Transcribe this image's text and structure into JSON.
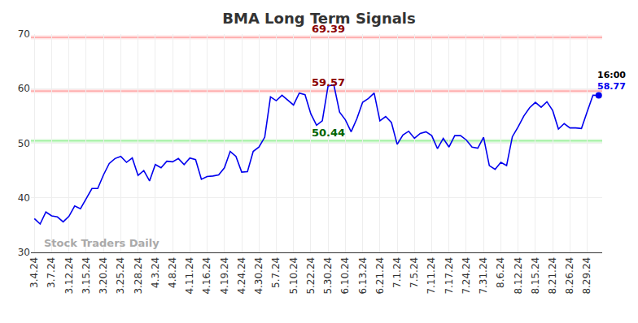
{
  "chart_data": {
    "type": "line",
    "title": "BMA Long Term Signals",
    "watermark": "Stock Traders Daily",
    "categories": [
      "3.4.24",
      null,
      null,
      "3.7.24",
      null,
      null,
      "3.12.24",
      null,
      null,
      "3.15.24",
      null,
      null,
      "3.20.24",
      null,
      null,
      "3.25.24",
      null,
      null,
      "3.28.24",
      null,
      null,
      "4.3.24",
      null,
      null,
      "4.8.24",
      null,
      null,
      "4.11.24",
      null,
      null,
      "4.16.24",
      null,
      null,
      "4.19.24",
      null,
      null,
      "4.24.24",
      null,
      null,
      "4.30.24",
      null,
      null,
      "5.7.24",
      null,
      null,
      "5.10.24",
      null,
      null,
      "5.22.24",
      null,
      null,
      "5.30.24",
      null,
      null,
      "6.10.24",
      null,
      null,
      "6.13.24",
      null,
      null,
      "6.21.24",
      null,
      null,
      "7.1.24",
      null,
      null,
      "7.5.24",
      null,
      null,
      "7.11.24",
      null,
      null,
      "7.17.24",
      null,
      null,
      "7.24.24",
      null,
      null,
      "7.31.24",
      null,
      null,
      "8.6.24",
      null,
      null,
      "8.12.24",
      null,
      null,
      "8.15.24",
      null,
      null,
      "8.21.24",
      null,
      null,
      "8.26.24",
      null,
      null,
      "8.29.24",
      null,
      null
    ],
    "values": [
      36.2,
      35.2,
      37.4,
      36.7,
      36.5,
      35.6,
      36.6,
      38.5,
      38.0,
      39.8,
      41.7,
      41.7,
      44.2,
      46.3,
      47.2,
      47.6,
      46.5,
      47.3,
      44.1,
      45.0,
      43.1,
      46.1,
      45.5,
      46.7,
      46.6,
      47.2,
      46.1,
      47.3,
      47.0,
      43.4,
      43.9,
      44.0,
      44.2,
      45.5,
      48.5,
      47.6,
      44.7,
      44.8,
      48.5,
      49.3,
      51.1,
      58.5,
      57.8,
      58.8,
      57.9,
      57.0,
      59.2,
      58.9,
      55.4,
      53.3,
      54.1,
      60.5,
      60.7,
      55.7,
      54.3,
      52.1,
      54.5,
      57.5,
      58.2,
      59.2,
      54.1,
      54.9,
      53.8,
      49.8,
      51.5,
      52.2,
      50.9,
      51.8,
      52.1,
      51.4,
      49.0,
      50.9,
      49.3,
      51.4,
      51.4,
      50.6,
      49.3,
      49.1,
      51.1,
      45.9,
      45.2,
      46.5,
      45.9,
      51.2,
      53.0,
      55.0,
      56.5,
      57.5,
      56.6,
      57.6,
      56.0,
      52.6,
      53.6,
      52.8,
      52.8,
      52.7,
      55.8,
      58.8,
      58.77
    ],
    "color": "#0000ee",
    "marker": "end",
    "end_label": "16:00",
    "reference_lines": [
      {
        "value": 69.39,
        "color": "#ff9999",
        "label_color": "#8b0000"
      },
      {
        "value": 59.57,
        "color": "#ff9999",
        "label_color": "#8b0000"
      },
      {
        "value": 50.44,
        "color": "#90ee90",
        "label_color": "#006400"
      }
    ],
    "ylim": [
      30,
      70
    ],
    "yticks": [
      30,
      40,
      50,
      60,
      70
    ],
    "grid": true
  }
}
